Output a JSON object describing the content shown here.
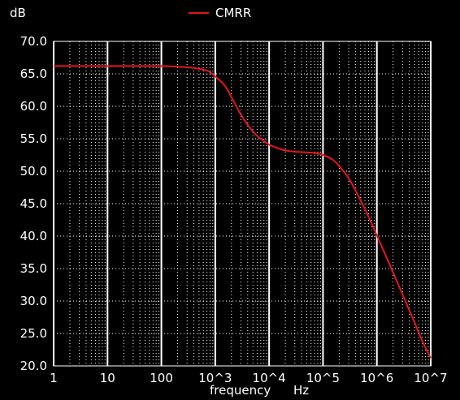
{
  "chart_data": {
    "type": "line",
    "ylabel": "dB",
    "xlabel": "frequency",
    "xunit": "Hz",
    "xscale": "log",
    "xlim": [
      1,
      10000000
    ],
    "ylim": [
      20,
      70
    ],
    "grid": true,
    "legend_position": "top-center",
    "background": "#000000",
    "axis_color": "#ffffff",
    "grid_color": "#ffffff",
    "xticks": [
      {
        "value": 1,
        "label": "1"
      },
      {
        "value": 10,
        "label": "10"
      },
      {
        "value": 100,
        "label": "100"
      },
      {
        "value": 1000,
        "label": "10^3"
      },
      {
        "value": 10000,
        "label": "10^4"
      },
      {
        "value": 100000,
        "label": "10^5"
      },
      {
        "value": 1000000,
        "label": "10^6"
      },
      {
        "value": 10000000,
        "label": "10^7"
      }
    ],
    "yticks": [
      {
        "value": 70,
        "label": "70.0"
      },
      {
        "value": 65,
        "label": "65.0"
      },
      {
        "value": 60,
        "label": "60.0"
      },
      {
        "value": 55,
        "label": "55.0"
      },
      {
        "value": 50,
        "label": "50.0"
      },
      {
        "value": 45,
        "label": "45.0"
      },
      {
        "value": 40,
        "label": "40.0"
      },
      {
        "value": 35,
        "label": "35.0"
      },
      {
        "value": 30,
        "label": "30.0"
      },
      {
        "value": 25,
        "label": "25.0"
      },
      {
        "value": 20,
        "label": "20.0"
      }
    ],
    "series": [
      {
        "name": "CMRR",
        "color": "#e8141c",
        "x": [
          1,
          10,
          100,
          200,
          400,
          700,
          1000,
          1500,
          2000,
          3000,
          5000,
          7000,
          10000,
          15000,
          20000,
          30000,
          50000,
          70000,
          100000,
          150000,
          200000,
          300000,
          500000,
          700000,
          1000000,
          2000000,
          3000000,
          5000000,
          7000000,
          10000000
        ],
        "y": [
          66.2,
          66.2,
          66.2,
          66.1,
          65.9,
          65.5,
          64.6,
          63.2,
          61.4,
          58.7,
          56.1,
          55.0,
          54.1,
          53.5,
          53.2,
          53.0,
          52.9,
          52.8,
          52.5,
          51.8,
          50.8,
          48.9,
          45.5,
          43.0,
          40.1,
          34.4,
          31.0,
          26.7,
          23.8,
          21.2
        ]
      }
    ]
  }
}
